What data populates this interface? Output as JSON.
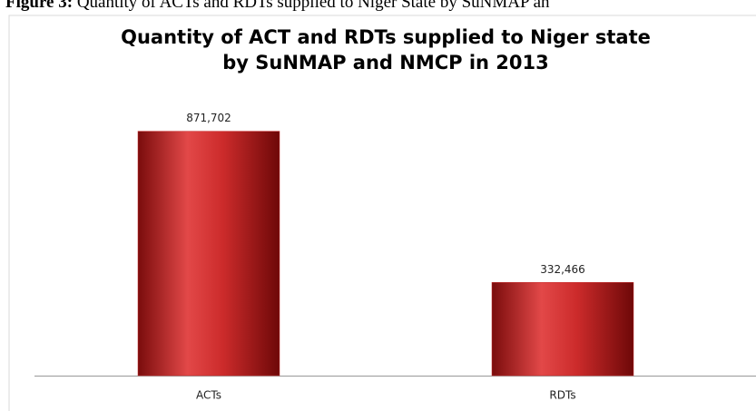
{
  "caption": {
    "label": "Figure 3:",
    "text": "Quantity of ACTs and RDTs supplied to Niger State by SuNMAP an"
  },
  "chart_data": {
    "type": "bar",
    "title": [
      "Quantity of ACT and RDTs supplied to Niger state",
      "by SuNMAP and NMCP in 2013"
    ],
    "categories": [
      "ACTs",
      "RDTs"
    ],
    "values": [
      871702,
      332466
    ],
    "value_labels": [
      "871,702",
      "332,466"
    ],
    "color": "#c62a2a",
    "ylim": [
      0,
      1000000
    ]
  }
}
